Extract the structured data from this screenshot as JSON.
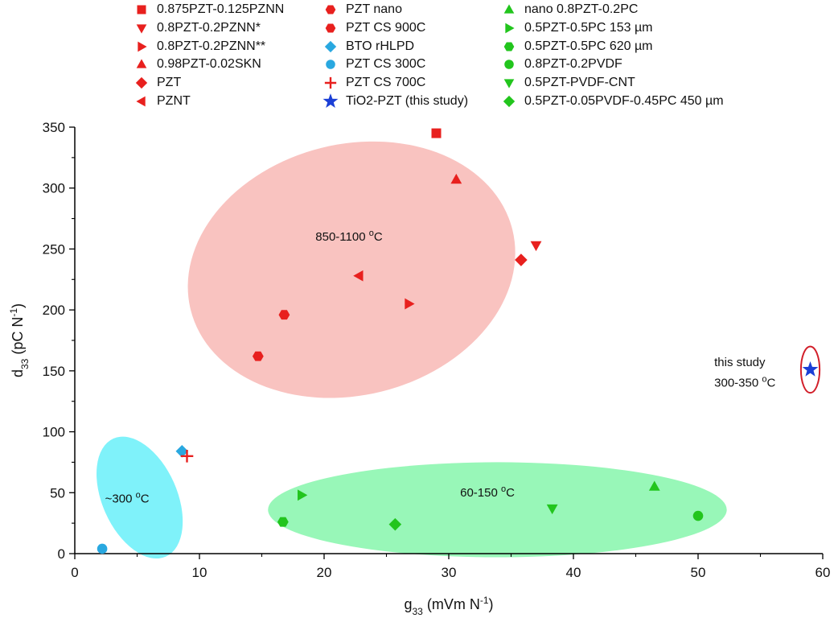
{
  "chart_data": {
    "type": "scatter",
    "xlabel": "g33 (mVm N-1)",
    "ylabel": "d33 (pC N-1)",
    "xlim": [
      0,
      60
    ],
    "ylim": [
      0,
      350
    ],
    "x_ticks": [
      0,
      10,
      20,
      30,
      40,
      50,
      60
    ],
    "y_ticks": [
      0,
      50,
      100,
      150,
      200,
      250,
      300,
      350
    ],
    "x_tick_labels": [
      "0",
      "10",
      "20",
      "30",
      "40",
      "50",
      "60"
    ],
    "y_tick_labels": [
      "0",
      "50",
      "100",
      "150",
      "200",
      "250",
      "300",
      "350"
    ],
    "legend_position": "top",
    "series": [
      {
        "name": "0.875PZT-0.125PZNN",
        "marker": "square",
        "color": "#e8201e",
        "points": [
          [
            29.0,
            345
          ]
        ]
      },
      {
        "name": "0.8PZT-0.2PZNN*",
        "marker": "triangle-down",
        "color": "#e8201e",
        "points": [
          [
            37.0,
            253
          ]
        ]
      },
      {
        "name": "0.8PZT-0.2PZNN**",
        "marker": "triangle-right",
        "color": "#e8201e",
        "points": [
          [
            26.8,
            205
          ]
        ]
      },
      {
        "name": "0.98PZT-0.02SKN",
        "marker": "triangle-up",
        "color": "#e8201e",
        "points": [
          [
            30.6,
            307
          ]
        ]
      },
      {
        "name": "PZT",
        "marker": "diamond",
        "color": "#e8201e",
        "points": [
          [
            35.8,
            241
          ]
        ]
      },
      {
        "name": "PZNT",
        "marker": "triangle-left",
        "color": "#e8201e",
        "points": [
          [
            22.8,
            228
          ]
        ]
      },
      {
        "name": "PZT nano",
        "marker": "hexagon",
        "color": "#e8201e",
        "points": [
          [
            14.7,
            162
          ]
        ]
      },
      {
        "name": "PZT CS 900C",
        "marker": "hexagon",
        "color": "#e8201e",
        "points": [
          [
            16.8,
            196
          ]
        ]
      },
      {
        "name": "BTO rHLPD",
        "marker": "diamond",
        "color": "#29a8e0",
        "points": [
          [
            8.6,
            84
          ]
        ]
      },
      {
        "name": "PZT CS 300C",
        "marker": "circle",
        "color": "#29a8e0",
        "points": [
          [
            2.2,
            4
          ]
        ]
      },
      {
        "name": "PZT CS 700C",
        "marker": "plus",
        "color": "#e8201e",
        "points": [
          [
            9.0,
            80
          ]
        ]
      },
      {
        "name": "TiO2-PZT (this study)",
        "marker": "star",
        "color": "#1b3fd6",
        "points": [
          [
            59.0,
            151
          ]
        ]
      },
      {
        "name": "nano 0.8PZT-0.2PC",
        "marker": "triangle-up",
        "color": "#22c51d",
        "points": [
          [
            46.5,
            55
          ]
        ]
      },
      {
        "name": "0.5PZT-0.5PC 153 µm",
        "marker": "triangle-right",
        "color": "#22c51d",
        "points": [
          [
            18.2,
            48
          ]
        ]
      },
      {
        "name": "0.5PZT-0.5PC 620 µm",
        "marker": "hexagon",
        "color": "#22c51d",
        "points": [
          [
            16.7,
            26
          ]
        ]
      },
      {
        "name": "0.8PZT-0.2PVDF",
        "marker": "circle",
        "color": "#22c51d",
        "points": [
          [
            50.0,
            31
          ]
        ]
      },
      {
        "name": "0.5PZT-PVDF-CNT",
        "marker": "triangle-down",
        "color": "#22c51d",
        "points": [
          [
            38.3,
            37
          ]
        ]
      },
      {
        "name": "0.5PZT-0.05PVDF-0.45PC 450 µm",
        "marker": "diamond",
        "color": "#22c51d",
        "points": [
          [
            25.7,
            24
          ]
        ]
      }
    ],
    "regions": [
      {
        "name": "high-temp-region",
        "color": "#f9c3c0",
        "center": [
          22.2,
          233
        ],
        "semi_axes": [
          13.3,
          103
        ],
        "rotation_deg": 14
      },
      {
        "name": "low-temp-region",
        "color": "#7ff2fa",
        "center": [
          5.2,
          46
        ],
        "semi_axes": [
          3.0,
          53
        ],
        "rotation_deg": 24
      },
      {
        "name": "polymer-region",
        "color": "#98f7b8",
        "center": [
          33.9,
          36
        ],
        "semi_axes": [
          18.4,
          39
        ],
        "rotation_deg": 0
      },
      {
        "name": "this-study-ring",
        "color": "#d21f2a",
        "center": [
          59.0,
          151
        ],
        "semi_axes": [
          0.75,
          19
        ],
        "rotation_deg": 0,
        "ring": true
      }
    ],
    "annotations": [
      {
        "text": "850-1100 °C",
        "x": 22.0,
        "y": 257,
        "align": "middle"
      },
      {
        "text": "~300 °C",
        "x": 4.2,
        "y": 42,
        "align": "middle"
      },
      {
        "text": "60-150 °C",
        "x": 33.1,
        "y": 47,
        "align": "middle"
      },
      {
        "text": "this study",
        "x": 51.3,
        "y": 154,
        "align": "start"
      },
      {
        "text": "300-350 °C",
        "x": 51.3,
        "y": 137,
        "align": "start"
      }
    ]
  }
}
